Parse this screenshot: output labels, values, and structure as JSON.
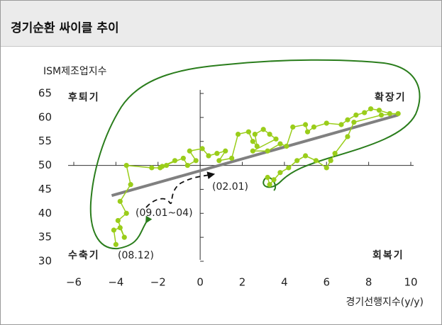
{
  "title": "경기순환 싸이클 추이",
  "chart_data": {
    "type": "scatter-line",
    "y_label": "ISM제조업지수",
    "x_label": "경기선행지수(y/y)",
    "xlim": [
      -6,
      10
    ],
    "ylim": [
      30,
      65
    ],
    "xticks": [
      {
        "value": -6,
        "label": "−6"
      },
      {
        "value": -4,
        "label": "−4"
      },
      {
        "value": -2,
        "label": "−2"
      },
      0,
      2,
      4,
      6,
      8,
      10
    ],
    "yticks": [
      30,
      35,
      40,
      45,
      50,
      55,
      60,
      65
    ],
    "axis_cross": {
      "x": 0,
      "y": 50
    },
    "series": [
      {
        "color": "#9acd1a",
        "x": [
          -4.0,
          -4.1,
          -3.8,
          -3.6,
          -3.9,
          -3.5,
          -3.8,
          -3.3,
          -3.5,
          -2.3,
          -1.9,
          -1.6,
          -1.2,
          -1.8,
          -0.8,
          -0.6,
          -0.2,
          -0.5,
          0.1,
          0.4,
          0.8,
          1.2,
          0.9,
          1.5,
          1.8,
          2.3,
          2.5,
          2.7,
          2.6,
          3.0,
          3.3,
          3.6,
          2.5,
          3.2,
          3.8,
          4.1,
          4.4,
          5.0,
          5.1,
          5.4,
          6.0,
          6.7,
          7.0,
          7.4,
          7.8,
          8.1,
          8.5,
          9.0,
          9.4,
          8.6,
          7.3,
          7.0,
          6.4,
          6.2,
          6.0,
          5.5,
          5.0,
          4.6,
          4.2,
          3.8,
          3.5,
          3.3,
          3.2
        ],
        "y": [
          33.5,
          36.5,
          37,
          35,
          38.5,
          40,
          42.5,
          46,
          50,
          49.5,
          49.5,
          50,
          51,
          49.8,
          51.5,
          50,
          51,
          53,
          53.5,
          52,
          52.5,
          53,
          51,
          51.5,
          56.5,
          57,
          55,
          54,
          56.5,
          57.5,
          56.5,
          55.5,
          53,
          53,
          54.5,
          54,
          58,
          58.5,
          57,
          58,
          58.8,
          58.5,
          59.5,
          60.5,
          61,
          61.8,
          61.5,
          60.8,
          60.8,
          60.5,
          59,
          56,
          52.5,
          51,
          49.5,
          51,
          52,
          51,
          49.5,
          48.5,
          47,
          46,
          47.5
        ]
      }
    ],
    "trend_line": {
      "color": "#808080",
      "x": [
        -4.2,
        9.4
      ],
      "y": [
        43.7,
        60.5
      ]
    },
    "loop_color": "#2a7d1c",
    "annotations": [
      "후퇴기",
      "확장기",
      "수축기",
      "회복기",
      "(08.12)",
      "(09.01~04)",
      "(02.01)"
    ]
  }
}
